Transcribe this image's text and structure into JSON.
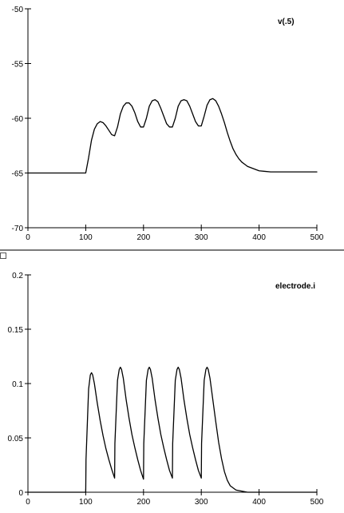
{
  "colors": {
    "axis": "#000000",
    "trace": "#000000",
    "divider": "#7a7a7a"
  },
  "chart_data": [
    {
      "type": "line",
      "legend": "v(.5)",
      "legend_placement": "top-right",
      "xlim": [
        0,
        500
      ],
      "ylim": [
        -70,
        -50
      ],
      "xticks": [
        0,
        100,
        200,
        300,
        400,
        500
      ],
      "yticks": [
        -70,
        -65,
        -60,
        -55,
        -50
      ],
      "grid": false,
      "series": [
        {
          "x": [
            0,
            100,
            105,
            110,
            115,
            120,
            125,
            130,
            135,
            140,
            145,
            150,
            155,
            160,
            165,
            170,
            175,
            180,
            185,
            190,
            195,
            200,
            205,
            210,
            215,
            220,
            225,
            230,
            235,
            240,
            245,
            250,
            255,
            260,
            265,
            270,
            275,
            280,
            285,
            290,
            295,
            300,
            305,
            310,
            315,
            320,
            325,
            330,
            335,
            340,
            345,
            350,
            355,
            360,
            365,
            370,
            375,
            380,
            385,
            390,
            395,
            400,
            410,
            420,
            430,
            440,
            450,
            460,
            470,
            480,
            490,
            500
          ],
          "y": [
            -65,
            -65,
            -63.6,
            -62,
            -61,
            -60.5,
            -60.3,
            -60.4,
            -60.7,
            -61.1,
            -61.5,
            -61.6,
            -60.8,
            -59.6,
            -58.9,
            -58.6,
            -58.6,
            -58.9,
            -59.5,
            -60.3,
            -60.8,
            -60.8,
            -60,
            -58.9,
            -58.4,
            -58.3,
            -58.5,
            -59.1,
            -59.8,
            -60.5,
            -60.8,
            -60.8,
            -60,
            -58.9,
            -58.4,
            -58.3,
            -58.4,
            -58.9,
            -59.6,
            -60.3,
            -60.7,
            -60.7,
            -59.8,
            -58.8,
            -58.3,
            -58.2,
            -58.4,
            -58.9,
            -59.6,
            -60.4,
            -61.3,
            -62.1,
            -62.8,
            -63.3,
            -63.7,
            -64.0,
            -64.2,
            -64.4,
            -64.5,
            -64.6,
            -64.7,
            -64.8,
            -64.85,
            -64.9,
            -64.9,
            -64.9,
            -64.9,
            -64.9,
            -64.9,
            -64.9,
            -64.9,
            -64.9
          ]
        }
      ]
    },
    {
      "type": "line",
      "legend": "electrode.i",
      "legend_placement": "top-right",
      "xlim": [
        0,
        500
      ],
      "ylim": [
        0,
        0.2
      ],
      "xticks": [
        0,
        100,
        200,
        300,
        400,
        500
      ],
      "yticks": [
        0,
        0.05,
        0.1,
        0.15,
        0.2
      ],
      "ytick_labels": [
        "0",
        "0.05",
        "0.1",
        "0.15",
        "0.2"
      ],
      "grid": false,
      "series": [
        {
          "x": [
            0,
            100,
            100.5,
            105,
            108,
            110,
            112,
            115,
            120,
            125,
            130,
            135,
            140,
            145,
            150,
            150.5,
            155,
            158,
            160,
            162,
            165,
            170,
            175,
            180,
            185,
            190,
            195,
            200,
            200.5,
            205,
            208,
            210,
            212,
            215,
            220,
            225,
            230,
            235,
            240,
            245,
            250,
            250.5,
            255,
            258,
            260,
            262,
            265,
            270,
            275,
            280,
            285,
            290,
            295,
            300,
            300.5,
            305,
            308,
            310,
            312,
            315,
            320,
            325,
            330,
            335,
            340,
            345,
            350,
            360,
            370,
            380,
            390,
            400,
            500
          ],
          "y": [
            0,
            0,
            0.03,
            0.095,
            0.108,
            0.11,
            0.108,
            0.1,
            0.082,
            0.066,
            0.052,
            0.04,
            0.03,
            0.021,
            0.013,
            0.045,
            0.103,
            0.113,
            0.115,
            0.113,
            0.105,
            0.085,
            0.068,
            0.053,
            0.041,
            0.03,
            0.02,
            0.012,
            0.045,
            0.103,
            0.113,
            0.115,
            0.113,
            0.105,
            0.085,
            0.068,
            0.053,
            0.041,
            0.03,
            0.02,
            0.013,
            0.045,
            0.103,
            0.113,
            0.115,
            0.113,
            0.105,
            0.085,
            0.068,
            0.053,
            0.041,
            0.03,
            0.02,
            0.013,
            0.045,
            0.103,
            0.113,
            0.115,
            0.113,
            0.105,
            0.085,
            0.065,
            0.046,
            0.031,
            0.019,
            0.011,
            0.006,
            0.002,
            0.001,
            0,
            0,
            0,
            0
          ]
        }
      ]
    }
  ]
}
